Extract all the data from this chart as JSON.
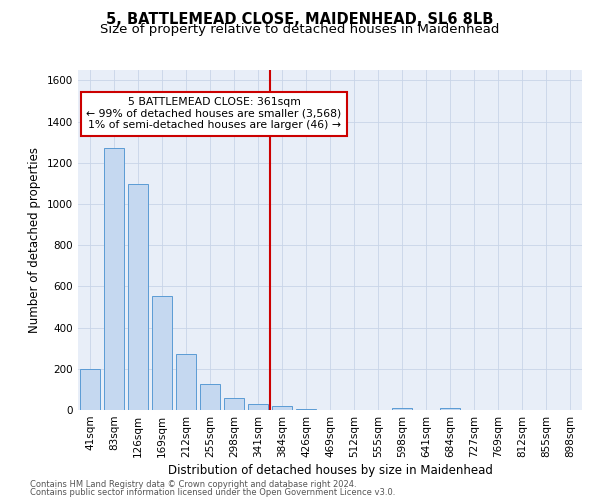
{
  "title": "5, BATTLEMEAD CLOSE, MAIDENHEAD, SL6 8LB",
  "subtitle": "Size of property relative to detached houses in Maidenhead",
  "xlabel": "Distribution of detached houses by size in Maidenhead",
  "ylabel": "Number of detached properties",
  "footnote1": "Contains HM Land Registry data © Crown copyright and database right 2024.",
  "footnote2": "Contains public sector information licensed under the Open Government Licence v3.0.",
  "bar_labels": [
    "41sqm",
    "83sqm",
    "126sqm",
    "169sqm",
    "212sqm",
    "255sqm",
    "298sqm",
    "341sqm",
    "384sqm",
    "426sqm",
    "469sqm",
    "512sqm",
    "555sqm",
    "598sqm",
    "641sqm",
    "684sqm",
    "727sqm",
    "769sqm",
    "812sqm",
    "855sqm",
    "898sqm"
  ],
  "bar_values": [
    197,
    1270,
    1095,
    553,
    270,
    128,
    57,
    30,
    17,
    5,
    0,
    0,
    0,
    10,
    0,
    12,
    0,
    0,
    0,
    0,
    0
  ],
  "bar_color": "#c5d8f0",
  "bar_edge_color": "#5b9bd5",
  "vline_index": 7.5,
  "annotation_title": "5 BATTLEMEAD CLOSE: 361sqm",
  "annotation_line1": "← 99% of detached houses are smaller (3,568)",
  "annotation_line2": "1% of semi-detached houses are larger (46) →",
  "annotation_box_color": "#ffffff",
  "annotation_box_edge": "#cc0000",
  "vline_color": "#cc0000",
  "ylim": [
    0,
    1650
  ],
  "yticks": [
    0,
    200,
    400,
    600,
    800,
    1000,
    1200,
    1400,
    1600
  ],
  "grid_color": "#c8d4e8",
  "bg_color": "#e8eef8",
  "fig_bg": "#ffffff",
  "title_fontsize": 10.5,
  "subtitle_fontsize": 9.5,
  "axis_label_fontsize": 8.5,
  "tick_fontsize": 7.5,
  "annotation_fontsize": 7.8
}
